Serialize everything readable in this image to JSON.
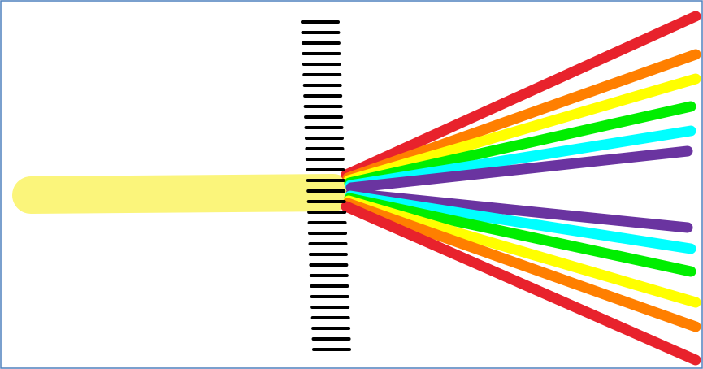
{
  "frame": {
    "border_color": "#4f81bd"
  },
  "incident_beam": {
    "color": "#fbf57b"
  },
  "grating": {
    "color": "#000000",
    "line_count": 32
  },
  "diffracted_beams": {
    "upper": [
      "#e8222c",
      "#ff7f00",
      "#ffff00",
      "#00ee00",
      "#00ffff",
      "#6a34a0"
    ],
    "lower": [
      "#6a34a0",
      "#00ffff",
      "#00ee00",
      "#ffff00",
      "#ff7f00",
      "#e8222c"
    ]
  }
}
